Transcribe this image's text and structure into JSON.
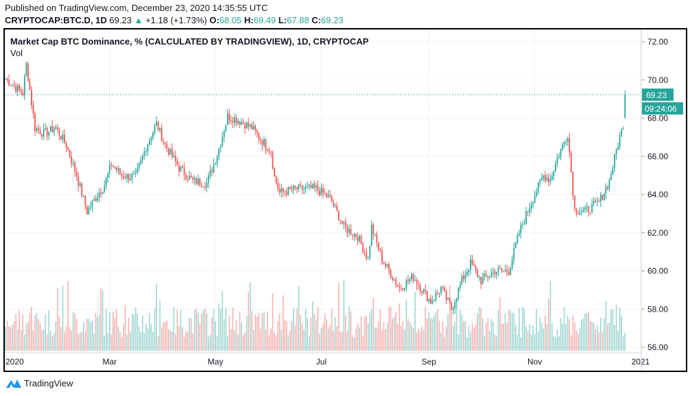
{
  "header": {
    "published": "Published on TradingView.com, December 23, 2020 14:35:55 UTC",
    "symbol": "CRYPTOCAP:BTC.D, 1D",
    "last": "69.23",
    "change": "+1.18 (+1.73%)",
    "o_label": "O:",
    "o": "68.05",
    "h_label": "H:",
    "h": "69.49",
    "l_label": "L:",
    "l": "67.88",
    "c_label": "C:",
    "c": "69.23"
  },
  "chart_title": "Market Cap BTC Dominance, % (CALCULATED BY TRADINGVIEW), 1D, CRYPTOCAP",
  "vol_label": "Vol",
  "price_axis": [
    "72.00",
    "70.00",
    "68.00",
    "66.00",
    "64.00",
    "62.00",
    "60.00",
    "58.00",
    "56.00"
  ],
  "time_axis": [
    "2020",
    "Mar",
    "May",
    "Jul",
    "Sep",
    "Nov",
    "2021"
  ],
  "last_price_label": "69.23",
  "countdown_label": "09:24:06",
  "brand": "TradingView",
  "colors": {
    "up": "#26a69a",
    "down": "#ef5350",
    "brand": "#2196f3"
  },
  "chart_data": {
    "type": "candlestick",
    "ylim": [
      56,
      72
    ],
    "xlim_days": [
      0,
      366
    ],
    "keypoints_day_value": [
      [
        0,
        70.06
      ],
      [
        10,
        69.3
      ],
      [
        12,
        70.8
      ],
      [
        17,
        67.5
      ],
      [
        22,
        67.2
      ],
      [
        29,
        67.5
      ],
      [
        35,
        66.6
      ],
      [
        41,
        65.0
      ],
      [
        47,
        63.1
      ],
      [
        53,
        64.0
      ],
      [
        57,
        64.5
      ],
      [
        61,
        65.6
      ],
      [
        67,
        65.0
      ],
      [
        75,
        64.9
      ],
      [
        81,
        66.5
      ],
      [
        87,
        67.7
      ],
      [
        92,
        66.6
      ],
      [
        100,
        65.4
      ],
      [
        108,
        64.7
      ],
      [
        116,
        64.6
      ],
      [
        122,
        66.1
      ],
      [
        128,
        68.1
      ],
      [
        134,
        67.9
      ],
      [
        142,
        67.5
      ],
      [
        148,
        66.8
      ],
      [
        153,
        66.3
      ],
      [
        155,
        64.9
      ],
      [
        158,
        64.1
      ],
      [
        168,
        64.3
      ],
      [
        179,
        64.3
      ],
      [
        187,
        63.8
      ],
      [
        195,
        62.3
      ],
      [
        203,
        61.8
      ],
      [
        209,
        60.6
      ],
      [
        211,
        62.3
      ],
      [
        217,
        60.6
      ],
      [
        227,
        59.1
      ],
      [
        235,
        59.7
      ],
      [
        245,
        58.4
      ],
      [
        251,
        59.1
      ],
      [
        257,
        58.0
      ],
      [
        263,
        59.5
      ],
      [
        268,
        60.4
      ],
      [
        274,
        59.5
      ],
      [
        282,
        60.0
      ],
      [
        290,
        60.0
      ],
      [
        296,
        62.0
      ],
      [
        302,
        63.4
      ],
      [
        310,
        65.0
      ],
      [
        314,
        64.8
      ],
      [
        318,
        65.9
      ],
      [
        324,
        67.2
      ],
      [
        328,
        63.2
      ],
      [
        334,
        63.1
      ],
      [
        342,
        63.6
      ],
      [
        348,
        64.7
      ],
      [
        352,
        66.3
      ],
      [
        356,
        67.7
      ],
      [
        357,
        69.23
      ]
    ]
  }
}
